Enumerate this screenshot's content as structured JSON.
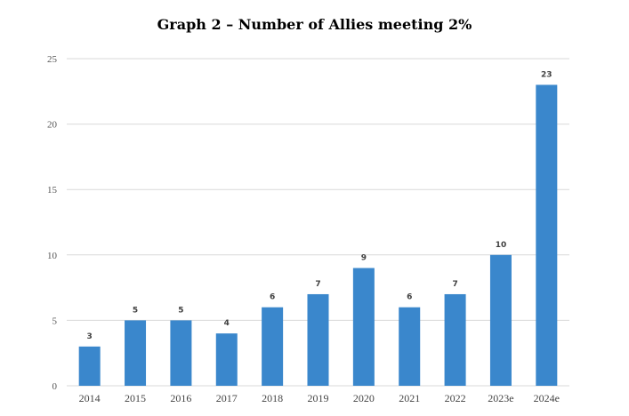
{
  "chart_data": {
    "type": "bar",
    "title": "Graph 2 – Number of Allies meeting 2%",
    "xlabel": "",
    "ylabel": "",
    "categories": [
      "2014",
      "2015",
      "2016",
      "2017",
      "2018",
      "2019",
      "2020",
      "2021",
      "2022",
      "2023e",
      "2024e"
    ],
    "values": [
      3,
      5,
      5,
      4,
      6,
      7,
      9,
      6,
      7,
      10,
      23
    ],
    "ylim": [
      0,
      25
    ],
    "yticks": [
      0,
      5,
      10,
      15,
      20,
      25
    ],
    "grid": true,
    "legend": "none",
    "bar_color": "#3a87cc"
  }
}
